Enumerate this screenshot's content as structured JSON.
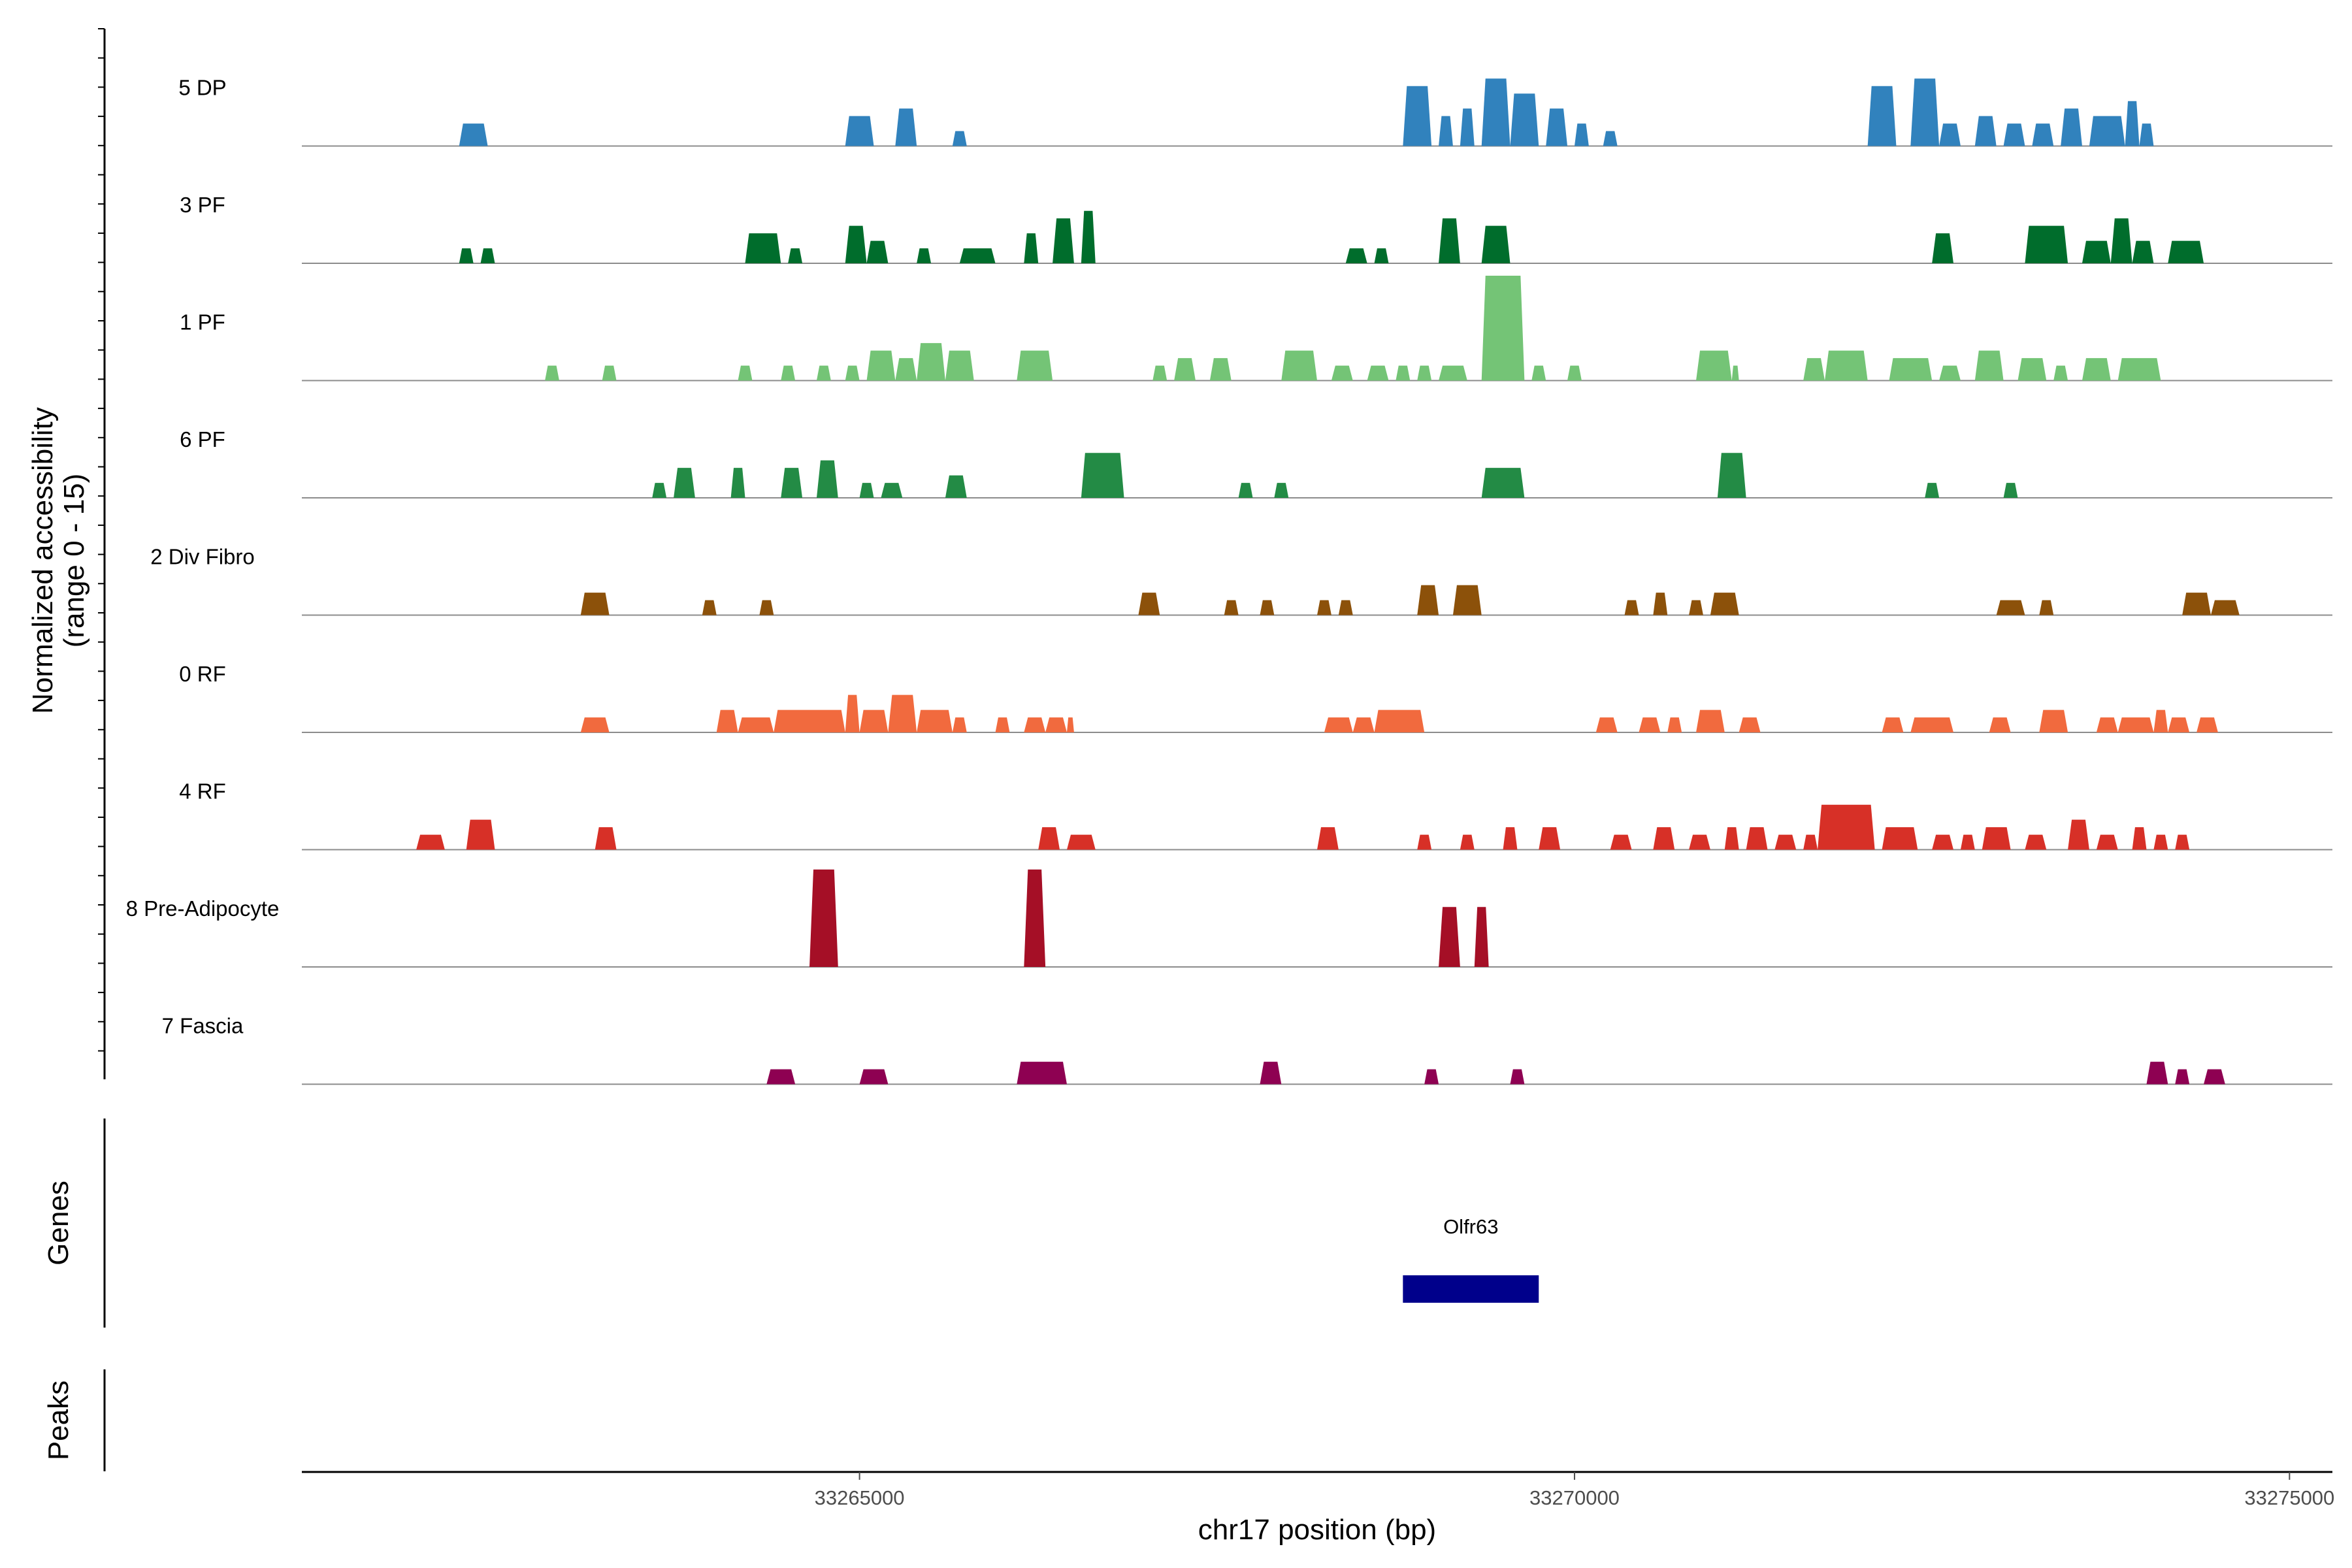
{
  "chart_data": {
    "type": "area",
    "y_axis_label_line1": "Normalized accessibility",
    "y_axis_label_line2": "(range 0 - 15)",
    "x_axis_label": "chr17 position (bp)",
    "x_range": [
      33261100,
      33275300
    ],
    "x_ticks": [
      {
        "value": 33265000,
        "label": "33265000"
      },
      {
        "value": 33270000,
        "label": "33270000"
      },
      {
        "value": 33275000,
        "label": "33275000"
      }
    ],
    "y_range": [
      0,
      15
    ],
    "genes_panel_label": "Genes",
    "peaks_panel_label": "Peaks",
    "genes": [
      {
        "name": "Olfr63",
        "start": 33268800,
        "end": 33269750,
        "color": "#00008b"
      }
    ],
    "series": [
      {
        "name": "5 DP",
        "color": "#3182bd",
        "peaks": [
          [
            33262200,
            33262400,
            3
          ],
          [
            33264900,
            33265100,
            4
          ],
          [
            33265250,
            33265400,
            5
          ],
          [
            33265650,
            33265750,
            2
          ],
          [
            33268800,
            33269000,
            8
          ],
          [
            33269050,
            33269150,
            4
          ],
          [
            33269200,
            33269300,
            5
          ],
          [
            33269350,
            33269550,
            9
          ],
          [
            33269550,
            33269750,
            7
          ],
          [
            33269800,
            33269950,
            5
          ],
          [
            33270000,
            33270100,
            3
          ],
          [
            33270200,
            33270300,
            2
          ],
          [
            33272050,
            33272250,
            8
          ],
          [
            33272350,
            33272550,
            9
          ],
          [
            33272550,
            33272700,
            3
          ],
          [
            33272800,
            33272950,
            4
          ],
          [
            33273000,
            33273150,
            3
          ],
          [
            33273200,
            33273350,
            3
          ],
          [
            33273400,
            33273550,
            5
          ],
          [
            33273600,
            33273850,
            4
          ],
          [
            33273850,
            33273950,
            6
          ],
          [
            33273950,
            33274050,
            3
          ]
        ]
      },
      {
        "name": "3 PF",
        "color": "#006d2c",
        "peaks": [
          [
            33262200,
            33262300,
            2
          ],
          [
            33262350,
            33262450,
            2
          ],
          [
            33264200,
            33264450,
            4
          ],
          [
            33264500,
            33264600,
            2
          ],
          [
            33264900,
            33265050,
            5
          ],
          [
            33265050,
            33265200,
            3
          ],
          [
            33265400,
            33265500,
            2
          ],
          [
            33265700,
            33265950,
            2
          ],
          [
            33266150,
            33266250,
            4
          ],
          [
            33266350,
            33266500,
            6
          ],
          [
            33266550,
            33266650,
            7
          ],
          [
            33268400,
            33268550,
            2
          ],
          [
            33268600,
            33268700,
            2
          ],
          [
            33269050,
            33269200,
            6
          ],
          [
            33269350,
            33269550,
            5
          ],
          [
            33272500,
            33272650,
            4
          ],
          [
            33273150,
            33273450,
            5
          ],
          [
            33273550,
            33273750,
            3
          ],
          [
            33273750,
            33273900,
            6
          ],
          [
            33273900,
            33274050,
            3
          ],
          [
            33274150,
            33274400,
            3
          ]
        ]
      },
      {
        "name": "1 PF",
        "color": "#74c476",
        "peaks": [
          [
            33262800,
            33262900,
            2
          ],
          [
            33263200,
            33263300,
            2
          ],
          [
            33264150,
            33264250,
            2
          ],
          [
            33264450,
            33264550,
            2
          ],
          [
            33264700,
            33264800,
            2
          ],
          [
            33264900,
            33265000,
            2
          ],
          [
            33265050,
            33265250,
            4
          ],
          [
            33265250,
            33265400,
            3
          ],
          [
            33265400,
            33265600,
            5
          ],
          [
            33265600,
            33265800,
            4
          ],
          [
            33266100,
            33266350,
            4
          ],
          [
            33267050,
            33267150,
            2
          ],
          [
            33267200,
            33267350,
            3
          ],
          [
            33267450,
            33267600,
            3
          ],
          [
            33267950,
            33268200,
            4
          ],
          [
            33268300,
            33268450,
            2
          ],
          [
            33268550,
            33268700,
            2
          ],
          [
            33268750,
            33268850,
            2
          ],
          [
            33268900,
            33269000,
            2
          ],
          [
            33269050,
            33269250,
            2
          ],
          [
            33269350,
            33269650,
            14
          ],
          [
            33269700,
            33269800,
            2
          ],
          [
            33269950,
            33270050,
            2
          ],
          [
            33270850,
            33271100,
            4
          ],
          [
            33271100,
            33271150,
            2
          ],
          [
            33271600,
            33271750,
            3
          ],
          [
            33271750,
            33272050,
            4
          ],
          [
            33272200,
            33272500,
            3
          ],
          [
            33272550,
            33272700,
            2
          ],
          [
            33272800,
            33273000,
            4
          ],
          [
            33273100,
            33273300,
            3
          ],
          [
            33273350,
            33273450,
            2
          ],
          [
            33273550,
            33273750,
            3
          ],
          [
            33273800,
            33274100,
            3
          ]
        ]
      },
      {
        "name": "6 PF",
        "color": "#238b45",
        "peaks": [
          [
            33263550,
            33263650,
            2
          ],
          [
            33263700,
            33263850,
            4
          ],
          [
            33264100,
            33264200,
            4
          ],
          [
            33264450,
            33264600,
            4
          ],
          [
            33264700,
            33264850,
            5
          ],
          [
            33265000,
            33265100,
            2
          ],
          [
            33265150,
            33265300,
            2
          ],
          [
            33265600,
            33265750,
            3
          ],
          [
            33266550,
            33266850,
            6
          ],
          [
            33267650,
            33267750,
            2
          ],
          [
            33267900,
            33268000,
            2
          ],
          [
            33269350,
            33269650,
            4
          ],
          [
            33271000,
            33271200,
            6
          ],
          [
            33272450,
            33272550,
            2
          ],
          [
            33273000,
            33273100,
            2
          ]
        ]
      },
      {
        "name": "2 Div Fibro",
        "color": "#8c510a",
        "peaks": [
          [
            33263050,
            33263250,
            3
          ],
          [
            33263900,
            33264000,
            2
          ],
          [
            33264300,
            33264400,
            2
          ],
          [
            33266950,
            33267100,
            3
          ],
          [
            33267550,
            33267650,
            2
          ],
          [
            33267800,
            33267900,
            2
          ],
          [
            33268200,
            33268300,
            2
          ],
          [
            33268350,
            33268450,
            2
          ],
          [
            33268900,
            33269050,
            4
          ],
          [
            33269150,
            33269350,
            4
          ],
          [
            33270350,
            33270450,
            2
          ],
          [
            33270550,
            33270650,
            3
          ],
          [
            33270800,
            33270900,
            2
          ],
          [
            33270950,
            33271150,
            3
          ],
          [
            33272950,
            33273150,
            2
          ],
          [
            33273250,
            33273350,
            2
          ],
          [
            33274250,
            33274450,
            3
          ],
          [
            33274450,
            33274650,
            2
          ]
        ]
      },
      {
        "name": "0 RF",
        "color": "#f16a3e",
        "peaks": [
          [
            33263050,
            33263250,
            2
          ],
          [
            33264000,
            33264150,
            3
          ],
          [
            33264150,
            33264400,
            2
          ],
          [
            33264400,
            33264900,
            3
          ],
          [
            33264900,
            33265000,
            5
          ],
          [
            33265000,
            33265200,
            3
          ],
          [
            33265200,
            33265400,
            5
          ],
          [
            33265400,
            33265650,
            3
          ],
          [
            33265650,
            33265750,
            2
          ],
          [
            33265950,
            33266050,
            2
          ],
          [
            33266150,
            33266300,
            2
          ],
          [
            33266300,
            33266450,
            2
          ],
          [
            33266450,
            33266500,
            2
          ],
          [
            33268250,
            33268450,
            2
          ],
          [
            33268450,
            33268600,
            2
          ],
          [
            33268600,
            33268950,
            3
          ],
          [
            33270150,
            33270300,
            2
          ],
          [
            33270450,
            33270600,
            2
          ],
          [
            33270650,
            33270750,
            2
          ],
          [
            33270850,
            33271050,
            3
          ],
          [
            33271150,
            33271300,
            2
          ],
          [
            33272150,
            33272300,
            2
          ],
          [
            33272350,
            33272650,
            2
          ],
          [
            33272900,
            33273050,
            2
          ],
          [
            33273250,
            33273450,
            3
          ],
          [
            33273650,
            33273800,
            2
          ],
          [
            33273800,
            33274050,
            2
          ],
          [
            33274050,
            33274150,
            3
          ],
          [
            33274150,
            33274300,
            2
          ],
          [
            33274350,
            33274500,
            2
          ]
        ]
      },
      {
        "name": "4 RF",
        "color": "#d73027",
        "peaks": [
          [
            33261900,
            33262100,
            2
          ],
          [
            33262250,
            33262450,
            4
          ],
          [
            33263150,
            33263300,
            3
          ],
          [
            33266250,
            33266400,
            3
          ],
          [
            33266450,
            33266650,
            2
          ],
          [
            33268200,
            33268350,
            3
          ],
          [
            33268900,
            33269000,
            2
          ],
          [
            33269200,
            33269300,
            2
          ],
          [
            33269500,
            33269600,
            3
          ],
          [
            33269750,
            33269900,
            3
          ],
          [
            33270250,
            33270400,
            2
          ],
          [
            33270550,
            33270700,
            3
          ],
          [
            33270800,
            33270950,
            2
          ],
          [
            33271050,
            33271150,
            3
          ],
          [
            33271200,
            33271350,
            3
          ],
          [
            33271400,
            33271550,
            2
          ],
          [
            33271600,
            33271700,
            2
          ],
          [
            33271700,
            33272100,
            6
          ],
          [
            33272150,
            33272400,
            3
          ],
          [
            33272500,
            33272650,
            2
          ],
          [
            33272700,
            33272800,
            2
          ],
          [
            33272850,
            33273050,
            3
          ],
          [
            33273150,
            33273300,
            2
          ],
          [
            33273450,
            33273600,
            4
          ],
          [
            33273650,
            33273800,
            2
          ],
          [
            33273900,
            33274000,
            3
          ],
          [
            33274050,
            33274150,
            2
          ],
          [
            33274200,
            33274300,
            2
          ]
        ]
      },
      {
        "name": "8 Pre-Adipocyte",
        "color": "#a50f26",
        "peaks": [
          [
            33264650,
            33264850,
            13
          ],
          [
            33266150,
            33266300,
            13
          ],
          [
            33269050,
            33269200,
            8
          ],
          [
            33269300,
            33269400,
            8
          ]
        ]
      },
      {
        "name": "7 Fascia",
        "color": "#8e0152",
        "peaks": [
          [
            33264350,
            33264550,
            2
          ],
          [
            33265000,
            33265200,
            2
          ],
          [
            33266100,
            33266450,
            3
          ],
          [
            33267800,
            33267950,
            3
          ],
          [
            33268950,
            33269050,
            2
          ],
          [
            33269550,
            33269650,
            2
          ],
          [
            33274000,
            33274150,
            3
          ],
          [
            33274200,
            33274300,
            2
          ],
          [
            33274400,
            33274550,
            2
          ]
        ]
      }
    ]
  }
}
